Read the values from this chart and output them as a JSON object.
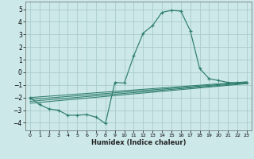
{
  "xlabel": "Humidex (Indice chaleur)",
  "bg_color": "#cce8e8",
  "grid_color": "#aacccc",
  "line_color": "#2e7d6e",
  "xlim": [
    -0.5,
    23.5
  ],
  "ylim": [
    -4.6,
    5.6
  ],
  "yticks": [
    -4,
    -3,
    -2,
    -1,
    0,
    1,
    2,
    3,
    4,
    5
  ],
  "xticks": [
    0,
    1,
    2,
    3,
    4,
    5,
    6,
    7,
    8,
    9,
    10,
    11,
    12,
    13,
    14,
    15,
    16,
    17,
    18,
    19,
    20,
    21,
    22,
    23
  ],
  "main_line_x": [
    0,
    1,
    2,
    3,
    4,
    5,
    6,
    7,
    8,
    9,
    10,
    11,
    12,
    13,
    14,
    15,
    16,
    17,
    18,
    19,
    20,
    21,
    22,
    23
  ],
  "main_line_y": [
    -2.0,
    -2.55,
    -2.9,
    -3.0,
    -3.4,
    -3.4,
    -3.35,
    -3.55,
    -4.05,
    -0.8,
    -0.85,
    1.3,
    3.1,
    3.7,
    4.75,
    4.9,
    4.85,
    3.3,
    0.3,
    -0.5,
    -0.65,
    -0.8,
    -0.85,
    -0.85
  ],
  "flat_lines": [
    {
      "x": [
        0,
        23
      ],
      "y": [
        -2.0,
        -0.75
      ]
    },
    {
      "x": [
        0,
        23
      ],
      "y": [
        -2.15,
        -0.8
      ]
    },
    {
      "x": [
        0,
        23
      ],
      "y": [
        -2.3,
        -0.85
      ]
    },
    {
      "x": [
        0,
        23
      ],
      "y": [
        -2.45,
        -0.9
      ]
    }
  ]
}
